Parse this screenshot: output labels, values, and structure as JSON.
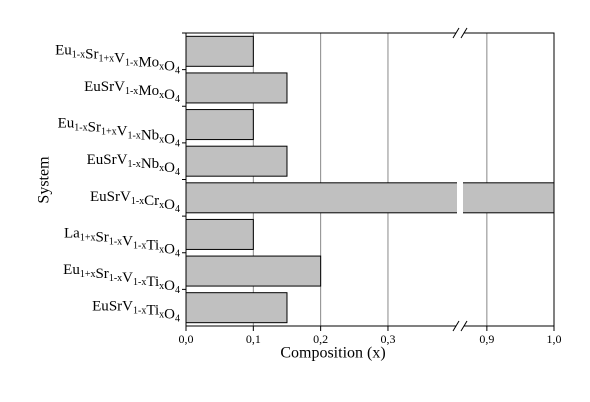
{
  "chart_data": {
    "type": "barh",
    "categories": [
      "Eu1-xSr1+xV1-xMoxO4",
      "EuSrV1-xMoxO4",
      "Eu1-xSr1+xV1-xNbxO4",
      "EuSrV1-xNbxO4",
      "EuSrV1-xCrxO4",
      "La1+xSr1-xV1-xTixO4",
      "Eu1+xSr1-xV1-xTixO4",
      "EuSrV1-xTixO4"
    ],
    "values": [
      0.1,
      0.15,
      0.1,
      0.15,
      1.0,
      0.1,
      0.2,
      0.15
    ],
    "color": "#c0c0c0",
    "xlim": [
      0,
      1.0
    ],
    "x_break": [
      0.407,
      0.86
    ],
    "xticks": [
      {
        "value": 0,
        "label": "0,0"
      },
      {
        "value": 0.1,
        "label": "0,1"
      },
      {
        "value": 0.2,
        "label": "0,2"
      },
      {
        "value": 0.3,
        "label": "0,3"
      },
      {
        "value": 0.9,
        "label": "0,9"
      },
      {
        "value": 1.0,
        "label": "1,0"
      }
    ],
    "xlabel": "Composition (x)",
    "ylabel": "System",
    "grid": true
  }
}
